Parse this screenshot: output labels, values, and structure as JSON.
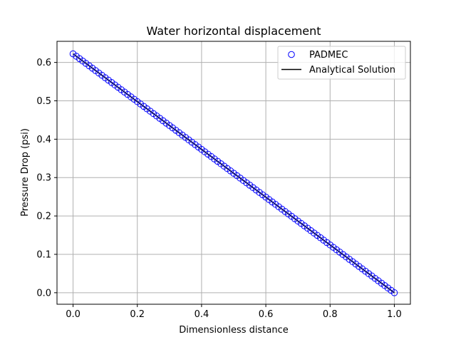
{
  "chart_data": {
    "type": "scatter",
    "title": "Water horizontal displacement",
    "xlabel": "Dimensionless distance",
    "ylabel": "Pressure Drop (psi)",
    "xlim": [
      -0.05,
      1.05
    ],
    "ylim": [
      -0.03,
      0.655
    ],
    "xticks": [
      0.0,
      0.2,
      0.4,
      0.6,
      0.8,
      1.0
    ],
    "xtick_labels": [
      "0.0",
      "0.2",
      "0.4",
      "0.6",
      "0.8",
      "1.0"
    ],
    "yticks": [
      0.0,
      0.1,
      0.2,
      0.3,
      0.4,
      0.5,
      0.6
    ],
    "ytick_labels": [
      "0.0",
      "0.1",
      "0.2",
      "0.3",
      "0.4",
      "0.5",
      "0.6"
    ],
    "grid": true,
    "legend_position": "top-right",
    "series": [
      {
        "name": "PADMEC",
        "kind": "scatter",
        "marker": "circle-open",
        "color": "#0000ff",
        "x": [
          0.0,
          0.01,
          0.02,
          0.03,
          0.04,
          0.05,
          0.06,
          0.07,
          0.08,
          0.09,
          0.1,
          0.11,
          0.12,
          0.13,
          0.14,
          0.15,
          0.16,
          0.17,
          0.18,
          0.19,
          0.2,
          0.21,
          0.22,
          0.23,
          0.24,
          0.25,
          0.26,
          0.27,
          0.28,
          0.29,
          0.3,
          0.31,
          0.32,
          0.33,
          0.34,
          0.35,
          0.36,
          0.37,
          0.38,
          0.39,
          0.4,
          0.41,
          0.42,
          0.43,
          0.44,
          0.45,
          0.46,
          0.47,
          0.48,
          0.49,
          0.5,
          0.51,
          0.52,
          0.53,
          0.54,
          0.55,
          0.56,
          0.57,
          0.58,
          0.59,
          0.6,
          0.61,
          0.62,
          0.63,
          0.64,
          0.65,
          0.66,
          0.67,
          0.68,
          0.69,
          0.7,
          0.71,
          0.72,
          0.73,
          0.74,
          0.75,
          0.76,
          0.77,
          0.78,
          0.79,
          0.8,
          0.81,
          0.82,
          0.83,
          0.84,
          0.85,
          0.86,
          0.87,
          0.88,
          0.89,
          0.9,
          0.91,
          0.92,
          0.93,
          0.94,
          0.95,
          0.96,
          0.97,
          0.98,
          0.99,
          1.0
        ],
        "y": [
          0.6224,
          0.6162,
          0.6099,
          0.6037,
          0.5975,
          0.5913,
          0.5851,
          0.5788,
          0.5726,
          0.5664,
          0.5602,
          0.5539,
          0.5477,
          0.5415,
          0.5353,
          0.529,
          0.5228,
          0.5166,
          0.5104,
          0.5041,
          0.4979,
          0.4917,
          0.4855,
          0.4792,
          0.473,
          0.4668,
          0.4606,
          0.4544,
          0.4481,
          0.4419,
          0.4357,
          0.4295,
          0.4232,
          0.417,
          0.4108,
          0.4046,
          0.3983,
          0.3921,
          0.3859,
          0.3797,
          0.3734,
          0.3672,
          0.361,
          0.3548,
          0.3485,
          0.3423,
          0.3361,
          0.3299,
          0.3236,
          0.3174,
          0.3112,
          0.305,
          0.2988,
          0.2925,
          0.2863,
          0.2801,
          0.2739,
          0.2676,
          0.2614,
          0.2552,
          0.249,
          0.2427,
          0.2365,
          0.2303,
          0.2241,
          0.2178,
          0.2116,
          0.2054,
          0.1992,
          0.1929,
          0.1867,
          0.1805,
          0.1743,
          0.1681,
          0.1618,
          0.1556,
          0.1494,
          0.1432,
          0.1369,
          0.1307,
          0.1245,
          0.1183,
          0.112,
          0.1058,
          0.0996,
          0.0934,
          0.0871,
          0.0809,
          0.0747,
          0.0685,
          0.0622,
          0.056,
          0.0498,
          0.0436,
          0.0373,
          0.0311,
          0.0249,
          0.0187,
          0.0124,
          0.0062,
          0.0
        ]
      },
      {
        "name": "Analytical Solution",
        "kind": "line",
        "color": "#000000",
        "x": [
          0.0,
          1.0
        ],
        "y": [
          0.6224,
          0.0
        ]
      }
    ]
  }
}
